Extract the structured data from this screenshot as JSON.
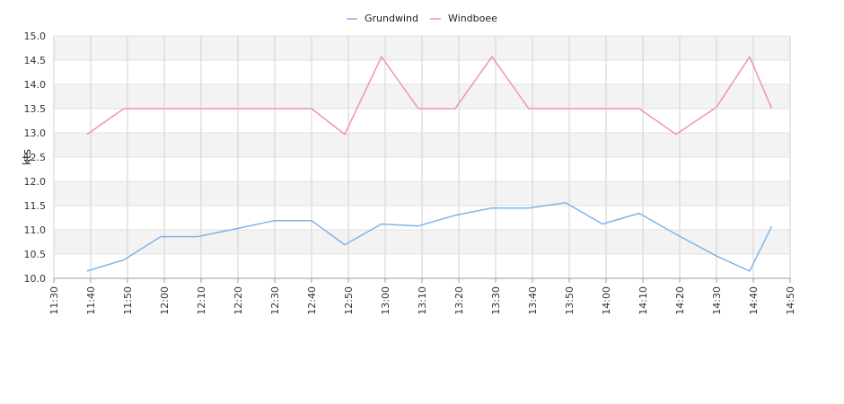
{
  "chart_data": {
    "type": "line",
    "ylabel": "kts",
    "ylim": [
      10.0,
      15.0
    ],
    "yticks": [
      "10.0",
      "10.5",
      "11.0",
      "11.5",
      "12.0",
      "12.5",
      "13.0",
      "13.5",
      "14.0",
      "14.5",
      "15.0"
    ],
    "xticks": [
      "11:30",
      "11:40",
      "11:50",
      "12:00",
      "12:10",
      "12:20",
      "12:30",
      "12:40",
      "12:50",
      "13:00",
      "13:10",
      "13:20",
      "13:30",
      "13:40",
      "13:50",
      "14:00",
      "14:10",
      "14:20",
      "14:30",
      "14:40",
      "14:50"
    ],
    "x": [
      "11:39",
      "11:49",
      "11:59",
      "12:09",
      "12:20",
      "12:30",
      "12:40",
      "12:49",
      "12:59",
      "13:09",
      "13:19",
      "13:29",
      "13:39",
      "13:49",
      "13:59",
      "14:09",
      "14:19",
      "14:30",
      "14:39",
      "14:45"
    ],
    "grid": true,
    "legend_position": "top-center",
    "series": [
      {
        "name": "Grundwind",
        "color": "#7cb5ec",
        "values": [
          10.15,
          10.38,
          10.86,
          10.86,
          11.03,
          11.19,
          11.19,
          10.69,
          11.12,
          11.08,
          11.3,
          11.45,
          11.45,
          11.56,
          11.12,
          11.34,
          10.91,
          10.46,
          10.15,
          11.07
        ]
      },
      {
        "name": "Windboee",
        "color": "#f190be",
        "values": [
          12.97,
          13.5,
          13.5,
          13.5,
          13.5,
          13.5,
          13.5,
          12.97,
          14.57,
          13.5,
          13.5,
          14.57,
          13.5,
          13.5,
          13.5,
          13.5,
          12.97,
          13.53,
          14.57,
          13.5
        ]
      }
    ]
  }
}
